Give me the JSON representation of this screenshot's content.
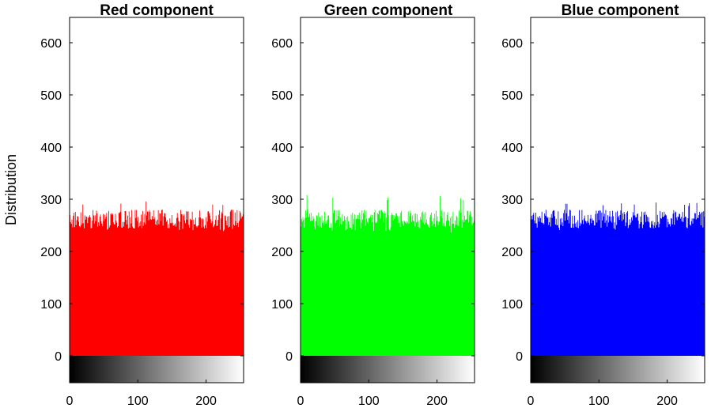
{
  "chart_data": [
    {
      "type": "bar",
      "title": "Red component",
      "ylabel": "Distribution",
      "xlabel": "",
      "xlim": [
        0,
        255
      ],
      "ylim": [
        0,
        640
      ],
      "xticks": [
        0,
        100,
        200
      ],
      "yticks": [
        0,
        100,
        200,
        300,
        400,
        500,
        600
      ],
      "color": "#ff0000",
      "colorbar": "grayscale",
      "bin_count": 256,
      "mean_value": 262,
      "min_value": 238,
      "max_value": 296
    },
    {
      "type": "bar",
      "title": "Green component",
      "ylabel": "",
      "xlabel": "",
      "xlim": [
        0,
        255
      ],
      "ylim": [
        0,
        640
      ],
      "xticks": [
        0,
        100,
        200
      ],
      "yticks": [
        0,
        100,
        200,
        300,
        400,
        500,
        600
      ],
      "color": "#00ff00",
      "colorbar": "grayscale",
      "bin_count": 256,
      "mean_value": 262,
      "min_value": 236,
      "max_value": 308
    },
    {
      "type": "bar",
      "title": "Blue component",
      "ylabel": "",
      "xlabel": "",
      "xlim": [
        0,
        255
      ],
      "ylim": [
        0,
        640
      ],
      "xticks": [
        0,
        100,
        200
      ],
      "yticks": [
        0,
        100,
        200,
        300,
        400,
        500,
        600
      ],
      "color": "#0000ff",
      "colorbar": "grayscale",
      "bin_count": 256,
      "mean_value": 262,
      "min_value": 238,
      "max_value": 294
    }
  ]
}
